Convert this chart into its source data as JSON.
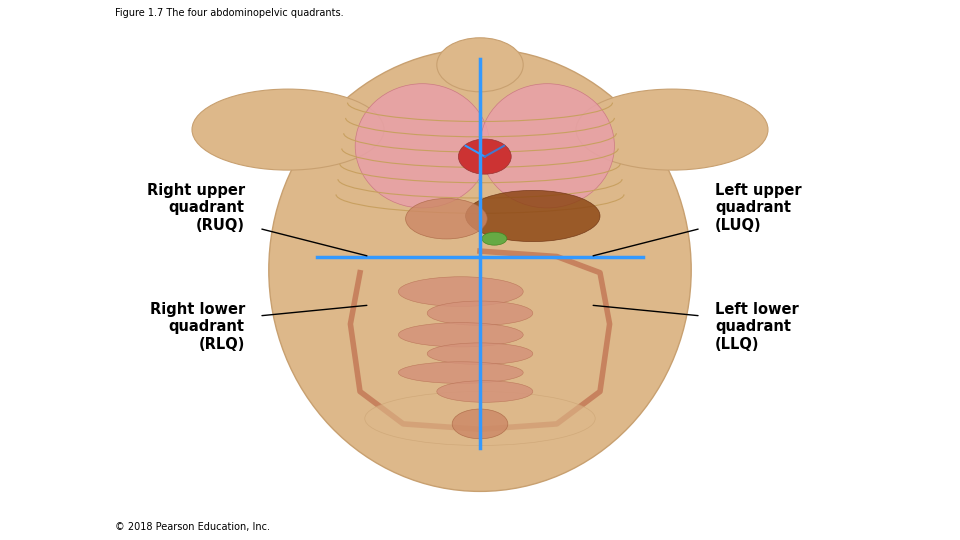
{
  "title": "Figure 1.7 The four abdominopelvic quadrants.",
  "copyright": "© 2018 Pearson Education, Inc.",
  "background_color": "#ffffff",
  "label_RUQ": "Right upper\nquadrant\n(RUQ)",
  "label_LUQ": "Left upper\nquadrant\n(LUQ)",
  "label_RLQ": "Right lower\nquadrant\n(RLQ)",
  "label_LLQ": "Left lower\nquadrant\n(LLQ)",
  "line_color": "#3399ff",
  "line_width": 2.5,
  "title_fontsize": 7,
  "label_fontsize": 10.5,
  "copyright_fontsize": 7
}
